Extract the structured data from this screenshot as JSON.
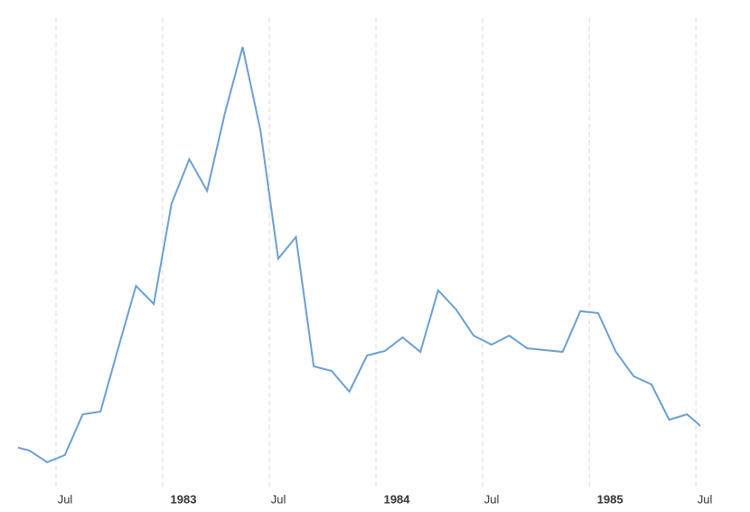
{
  "chart_data": {
    "type": "line",
    "color": "#6a9fd4",
    "grid": true,
    "x": [
      "1982-04",
      "1982-05",
      "1982-06",
      "1982-07",
      "1982-08",
      "1982-09",
      "1982-10",
      "1982-11",
      "1982-12",
      "1983-01",
      "1983-02",
      "1983-03",
      "1983-04",
      "1983-05",
      "1983-06",
      "1983-07",
      "1983-08",
      "1983-09",
      "1983-10",
      "1983-11",
      "1983-12",
      "1984-01",
      "1984-02",
      "1984-03",
      "1984-04",
      "1984-05",
      "1984-06",
      "1984-07",
      "1984-08",
      "1984-09",
      "1984-10",
      "1984-11",
      "1984-12",
      "1985-01",
      "1985-02",
      "1985-03",
      "1985-04",
      "1985-05",
      "1985-06",
      "1985-07"
    ],
    "values": [
      27,
      22,
      9,
      17,
      62,
      65,
      135,
      204,
      184,
      295,
      344,
      309,
      395,
      468,
      376,
      234,
      258,
      115,
      110,
      87,
      127,
      132,
      147,
      131,
      199,
      178,
      149,
      139,
      149,
      135,
      133,
      131,
      176,
      174,
      131,
      104,
      95,
      56,
      62,
      45
    ],
    "ylim": [
      0,
      500
    ],
    "xticks": [
      {
        "value": "1982-07",
        "label": "Jul"
      },
      {
        "value": "1983-01",
        "label": "1983"
      },
      {
        "value": "1983-07",
        "label": "Jul"
      },
      {
        "value": "1984-01",
        "label": "1984"
      },
      {
        "value": "1984-07",
        "label": "Jul"
      },
      {
        "value": "1985-01",
        "label": "1985"
      },
      {
        "value": "1985-07",
        "label": "Jul"
      }
    ]
  }
}
